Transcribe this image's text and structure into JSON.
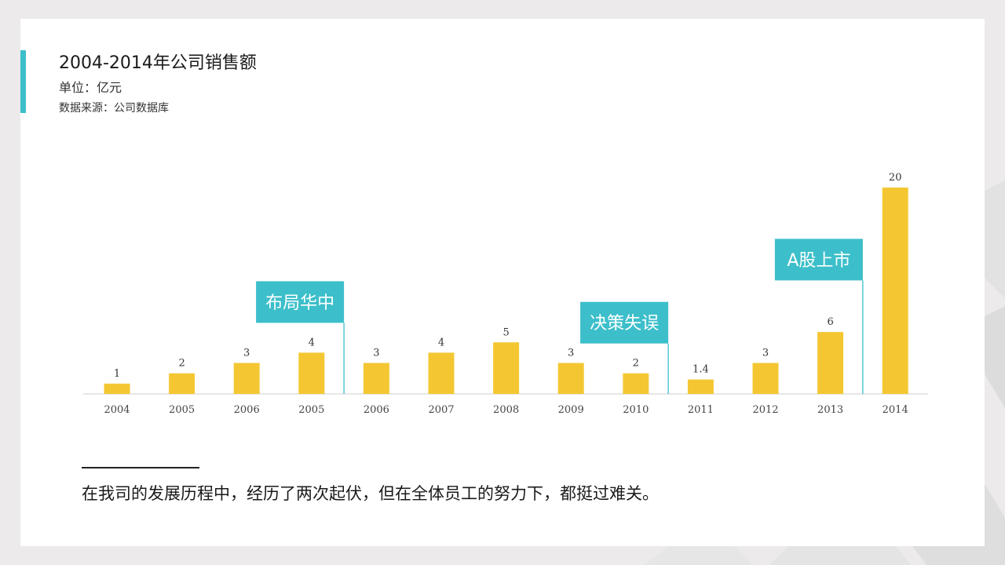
{
  "header": {
    "title": "2004-2014年公司销售额",
    "unit": "单位：亿元",
    "source": "数据来源：公司数据库"
  },
  "colors": {
    "bar": "#f4c732",
    "accent": "#3cbfca",
    "axis": "#cfcfcf"
  },
  "chart_data": {
    "type": "bar",
    "categories": [
      "2004",
      "2005",
      "2006",
      "2005",
      "2006",
      "2007",
      "2008",
      "2009",
      "2010",
      "2011",
      "2012",
      "2013",
      "2014"
    ],
    "values": [
      1,
      2,
      3,
      4,
      3,
      4,
      5,
      3,
      2,
      1.4,
      3,
      6,
      20
    ],
    "value_labels": [
      "1",
      "2",
      "3",
      "4",
      "3",
      "4",
      "5",
      "3",
      "2",
      "1.4",
      "3",
      "6",
      "20"
    ],
    "ylim": [
      0,
      20
    ],
    "grid": false,
    "annotations": [
      {
        "text": "布局华中",
        "after_index": 3
      },
      {
        "text": "决策失误",
        "after_index": 8
      },
      {
        "text": "A股上市",
        "after_index": 11
      }
    ]
  },
  "caption": "在我司的发展历程中，经历了两次起伏，但在全体员工的努力下，都挺过难关。"
}
